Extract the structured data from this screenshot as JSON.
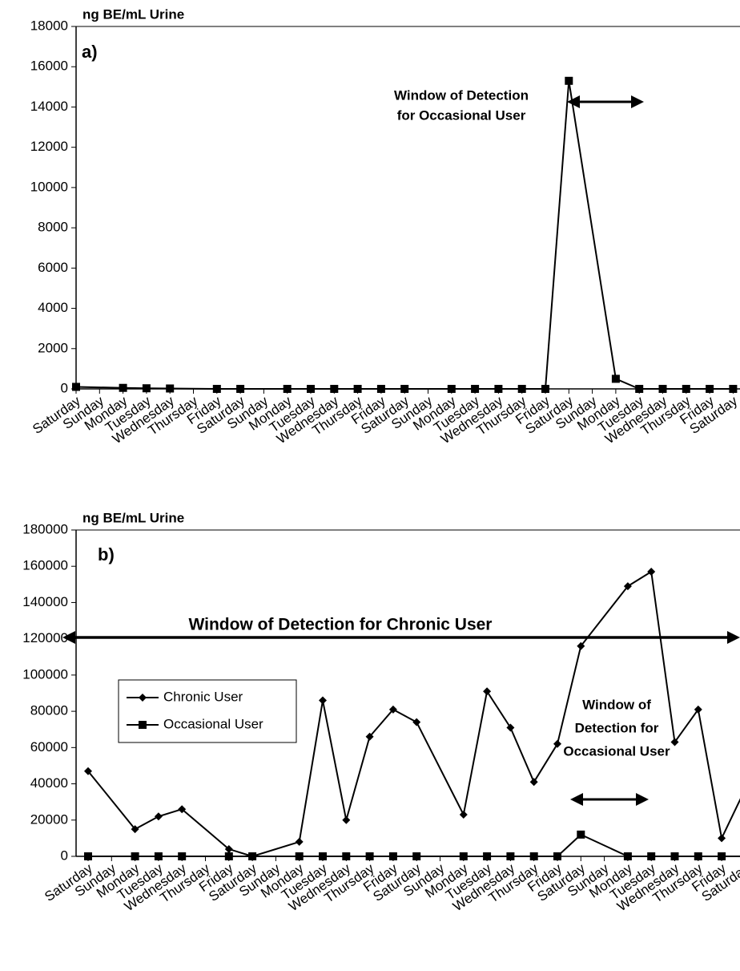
{
  "chart_data": [
    {
      "type": "line",
      "panel_label": "a)",
      "y_label": "ng BE/mL Urine",
      "annotations": [
        {
          "text": [
            "Window of Detection",
            "for Occasional User"
          ]
        }
      ],
      "categories": [
        "Saturday",
        "Sunday",
        "Monday",
        "Tuesday",
        "Wednesday",
        "Thursday",
        "Friday",
        "Saturday",
        "Sunday",
        "Monday",
        "Tuesday",
        "Wednesday",
        "Thursday",
        "Friday",
        "Saturday",
        "Sunday",
        "Monday",
        "Tuesday",
        "Wednesday",
        "Thursday",
        "Friday",
        "Saturday",
        "Sunday",
        "Monday",
        "Tuesday",
        "Wednesday",
        "Thursday",
        "Friday",
        "Saturday"
      ],
      "series": [
        {
          "name": "Occasional User",
          "color": "#000000",
          "marker": "square",
          "values": [
            100,
            null,
            50,
            30,
            20,
            null,
            0,
            0,
            null,
            0,
            0,
            0,
            0,
            0,
            0,
            null,
            0,
            0,
            0,
            0,
            0,
            15300,
            null,
            500,
            0,
            0,
            0,
            0,
            0
          ]
        }
      ],
      "ylim": [
        0,
        18000
      ],
      "yticks": [
        0,
        2000,
        4000,
        6000,
        8000,
        10000,
        12000,
        14000,
        16000,
        18000
      ],
      "connect_gaps": true
    },
    {
      "type": "line",
      "panel_label": "b)",
      "y_label": "ng BE/mL Urine",
      "annotations": [
        {
          "text": [
            "Window  of Detection for Chronic User"
          ]
        },
        {
          "text": [
            "Window of",
            "Detection for",
            "Occasional User"
          ]
        }
      ],
      "categories": [
        "Saturday",
        "Sunday",
        "Monday",
        "Tuesday",
        "Wednesday",
        "Thursday",
        "Friday",
        "Saturday",
        "Sunday",
        "Monday",
        "Tuesday",
        "Wednesday",
        "Thursday",
        "Friday",
        "Saturday",
        "Sunday",
        "Monday",
        "Tuesday",
        "Wednesday",
        "Thursday",
        "Friday",
        "Saturday",
        "Sunday",
        "Monday",
        "Tuesday",
        "Wednesday",
        "Thursday",
        "Friday",
        "Saturday"
      ],
      "series": [
        {
          "name": "Chronic User",
          "color": "#000000",
          "marker": "diamond",
          "values": [
            47000,
            null,
            15000,
            22000,
            26000,
            null,
            4000,
            0,
            null,
            8000,
            86000,
            20000,
            66000,
            81000,
            74000,
            null,
            23000,
            91000,
            71000,
            41000,
            62000,
            116000,
            null,
            149000,
            157000,
            63000,
            81000,
            10000,
            37000
          ]
        },
        {
          "name": "Occasional User",
          "color": "#000000",
          "marker": "square",
          "values": [
            0,
            null,
            0,
            0,
            0,
            null,
            0,
            0,
            null,
            0,
            0,
            0,
            0,
            0,
            0,
            null,
            0,
            0,
            0,
            0,
            0,
            12000,
            null,
            0,
            0,
            0,
            0,
            0,
            0
          ]
        }
      ],
      "ylim": [
        0,
        180000
      ],
      "yticks": [
        0,
        20000,
        40000,
        60000,
        80000,
        100000,
        120000,
        140000,
        160000,
        180000
      ],
      "legend": "left",
      "connect_gaps": true
    }
  ]
}
